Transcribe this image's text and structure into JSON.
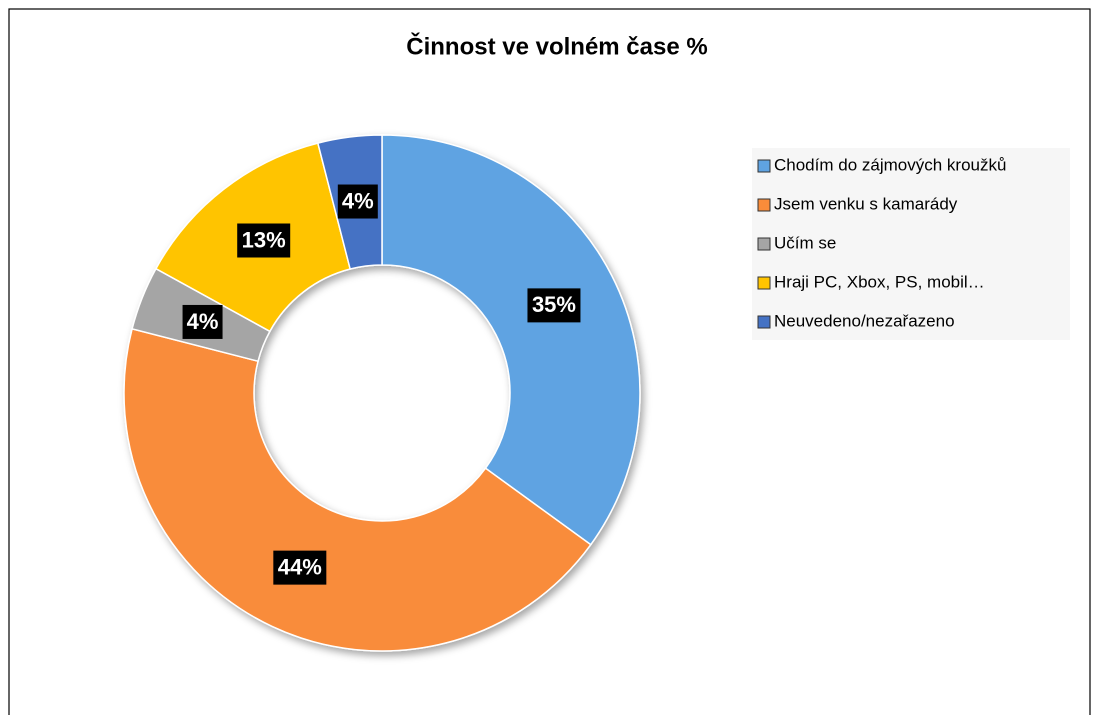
{
  "chart_data": {
    "type": "donut",
    "title": "Činnost ve volném čase %",
    "categories": [
      "Chodím do zájmových kroužků",
      "Jsem venku s kamarády",
      "Učím se",
      "Hraji PC, Xbox, PS, mobil…",
      "Neuvedeno/nezařazeno"
    ],
    "values": [
      35,
      44,
      4,
      13,
      4
    ],
    "value_labels": [
      "35%",
      "44%",
      "4%",
      "13%",
      "4%"
    ],
    "colors": [
      "#5fa3e2",
      "#f98c3a",
      "#a5a5a5",
      "#ffc400",
      "#4472c4"
    ],
    "legend": "right"
  }
}
